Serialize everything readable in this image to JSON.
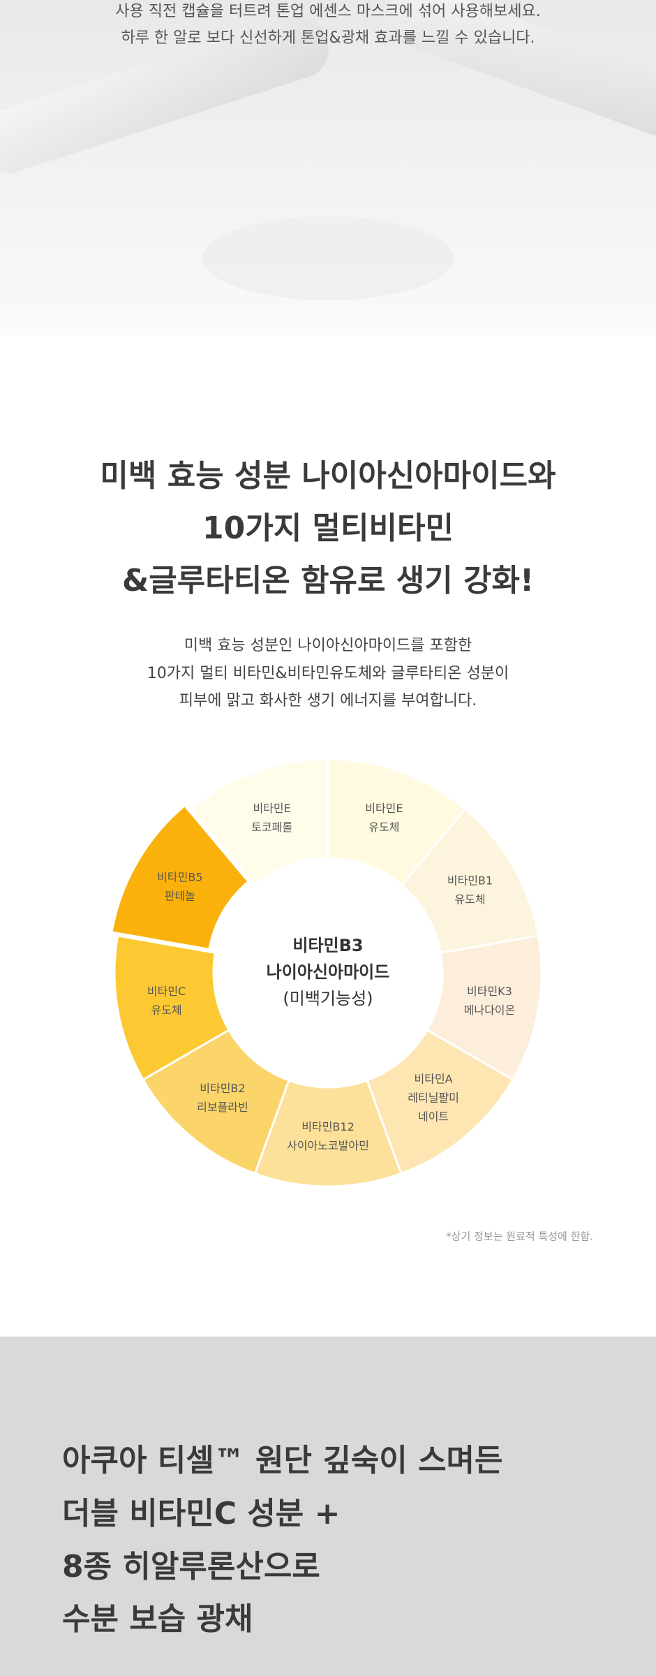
{
  "intro": {
    "lines": [
      "사용 직전 캡슐을 터트려 톤업 에센스 마스크에 섞어 사용해보세요.",
      "하루 한 알로 보다 신선하게 톤업&광채 효과를 느낄 수 있습니다."
    ]
  },
  "vitamin": {
    "heading": [
      "미백 효능 성분 나이아신아마이드와",
      "10가지 멀티비타민",
      "&글루타티온 함유로 생기 강화!"
    ],
    "body": [
      "미백 효능 성분인 나이아신아마이드를 포함한",
      "10가지 멀티 비타민&비타민유도체와 글루타티온 성분이",
      "피부에  맑고 화사한 생기 에너지를 부여합니다."
    ],
    "wheel": {
      "center": [
        "비타민B3",
        "나이아신아마이드",
        "(미백기능성)"
      ],
      "segments": [
        {
          "lines": [
            "비타민E",
            "유도체"
          ],
          "color": "#fffae0"
        },
        {
          "lines": [
            "비타민B1",
            "유도체"
          ],
          "color": "#fdf4de"
        },
        {
          "lines": [
            "비타민K3",
            "메나다이온"
          ],
          "color": "#fdeedc"
        },
        {
          "lines": [
            "비타민A",
            "레티닐팔미",
            "네이트"
          ],
          "color": "#fde6b2"
        },
        {
          "lines": [
            "비타민B12",
            "사이아노코발아민"
          ],
          "color": "#fde099"
        },
        {
          "lines": [
            "비타민B2",
            "리보플라빈"
          ],
          "color": "#fbd46a"
        },
        {
          "lines": [
            "비타민C",
            "유도체"
          ],
          "color": "#fcc933"
        },
        {
          "lines": [
            "비타민B5",
            "판테놀"
          ],
          "color": "#fbb10b"
        },
        {
          "lines": [
            "비타민E",
            "토코페롤"
          ],
          "color": "#fffcea"
        }
      ]
    },
    "footnote": "*상기 정보는 원료적 특성에 한함."
  },
  "feature": {
    "heading": [
      "아쿠아 티셀™ 원단 깊숙이 스며든",
      "더블 비타민C 성분 +",
      "8종 히알루론산으로",
      "수분 보습 광채"
    ]
  }
}
